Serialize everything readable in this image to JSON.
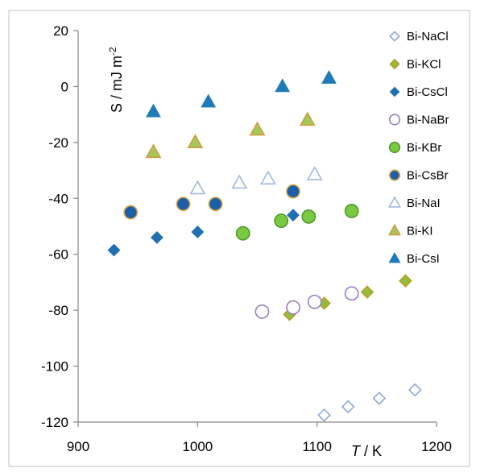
{
  "chart_data": {
    "type": "scatter",
    "xlim": [
      900,
      1200
    ],
    "ylim": [
      -120,
      20
    ],
    "x_ticks": [
      900,
      1000,
      1100,
      1200
    ],
    "y_ticks": [
      20,
      0,
      -20,
      -40,
      -60,
      -80,
      -100,
      -120
    ],
    "xlabel": "T / K",
    "ylabel": "S / mJ m-2",
    "legend_position": "right",
    "grid": false,
    "series": [
      {
        "name": "Bi-NaCl",
        "marker": "diamond-open",
        "color": "#8ea9d8",
        "points": [
          [
            1106,
            -117.5
          ],
          [
            1126,
            -114.5
          ],
          [
            1152,
            -111.5
          ],
          [
            1182,
            -108.5
          ]
        ]
      },
      {
        "name": "Bi-KCl",
        "marker": "diamond",
        "color": "#8fbf3a",
        "stroke": "#c09a2c",
        "points": [
          [
            1077,
            -81.5
          ],
          [
            1106,
            -77.5
          ],
          [
            1142,
            -73.5
          ],
          [
            1174,
            -69.5
          ]
        ]
      },
      {
        "name": "Bi-CsCl",
        "marker": "diamond",
        "color": "#1f6fb2",
        "points": [
          [
            930,
            -58.5
          ],
          [
            966,
            -54
          ],
          [
            1000,
            -52
          ],
          [
            1080,
            -46
          ]
        ]
      },
      {
        "name": "Bi-NaBr",
        "marker": "circle-open",
        "color": "#9b7fc1",
        "points": [
          [
            1054,
            -80.5
          ],
          [
            1080,
            -79
          ],
          [
            1098,
            -77
          ],
          [
            1129,
            -74
          ]
        ]
      },
      {
        "name": "Bi-KBr",
        "marker": "circle",
        "color": "#7ac943",
        "stroke": "#4f9a2c",
        "points": [
          [
            1038,
            -52.5
          ],
          [
            1070,
            -48
          ],
          [
            1093,
            -46.5
          ],
          [
            1129,
            -44.5
          ]
        ]
      },
      {
        "name": "Bi-CsBr",
        "marker": "circle",
        "color": "#1c5fa8",
        "stroke": "#d9a441",
        "points": [
          [
            944,
            -45
          ],
          [
            988,
            -42
          ],
          [
            1015,
            -42
          ],
          [
            1080,
            -37.5
          ]
        ]
      },
      {
        "name": "Bi-NaI",
        "marker": "triangle-open",
        "color": "#9fb8dd",
        "points": [
          [
            1000,
            -36.5
          ],
          [
            1035,
            -34.5
          ],
          [
            1059,
            -33
          ],
          [
            1098,
            -31.5
          ]
        ]
      },
      {
        "name": "Bi-KI",
        "marker": "triangle",
        "color": "#a3c95b",
        "stroke": "#d19a3f",
        "points": [
          [
            963,
            -23.5
          ],
          [
            998,
            -20
          ],
          [
            1050,
            -15.5
          ],
          [
            1092,
            -12
          ]
        ]
      },
      {
        "name": "Bi-CsI",
        "marker": "triangle",
        "color": "#1f7ab8",
        "points": [
          [
            963,
            -9
          ],
          [
            1009,
            -5.5
          ],
          [
            1071,
            0
          ],
          [
            1110,
            3
          ]
        ]
      }
    ]
  }
}
